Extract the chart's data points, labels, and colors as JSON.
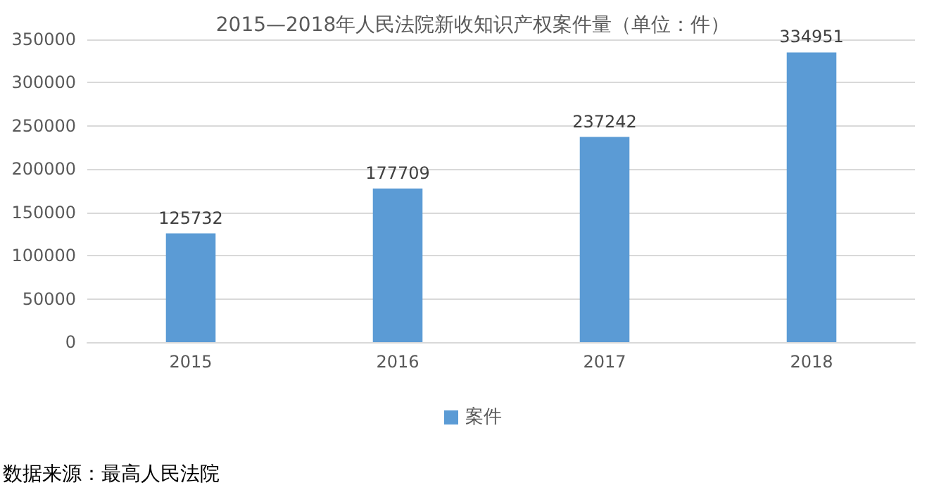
{
  "chart_data": {
    "type": "bar",
    "title": "2015—2018年人民法院新收知识产权案件量（单位：件）",
    "categories": [
      "2015",
      "2016",
      "2017",
      "2018"
    ],
    "series": [
      {
        "name": "案件",
        "color": "#5b9bd5",
        "values": [
          125732,
          177709,
          237242,
          334951
        ]
      }
    ],
    "ylim": [
      0,
      350000
    ],
    "yticks": [
      0,
      50000,
      100000,
      150000,
      200000,
      250000,
      300000,
      350000
    ],
    "grid": "y",
    "legend": "bottom",
    "data_labels": true,
    "annotations": [
      "数据来源：最高人民法院"
    ]
  }
}
